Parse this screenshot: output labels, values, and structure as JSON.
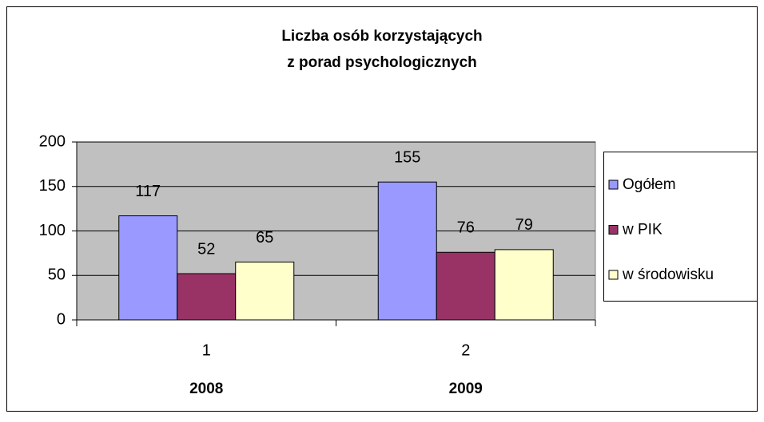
{
  "chart_data": {
    "type": "bar",
    "title": [
      "Liczba osób korzystających",
      "z porad psychologicznych"
    ],
    "categories": [
      "1",
      "2"
    ],
    "category_sublabels": [
      "2008",
      "2009"
    ],
    "series": [
      {
        "name": "Ogółem",
        "color": "#9999ff",
        "values": [
          117,
          155
        ]
      },
      {
        "name": "w PIK",
        "color": "#993366",
        "values": [
          52,
          76
        ]
      },
      {
        "name": "w środowisku",
        "color": "#ffffcc",
        "values": [
          65,
          79
        ]
      }
    ],
    "ylim": [
      0,
      200
    ],
    "yticks": [
      0,
      50,
      100,
      150,
      200
    ],
    "grid": true,
    "legend": "right"
  }
}
